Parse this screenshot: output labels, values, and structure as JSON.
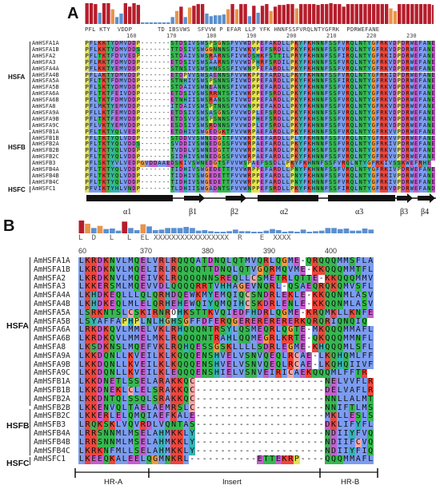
{
  "panel_a": {
    "letter": "A",
    "consensus": "PFL KTY  VDDP       TD IBSVWS  SFVVW P EFAR LLP YFK HNNFSSFVRQLNTYGFRK  PDRWEFANE",
    "ruler": [
      "160",
      "170",
      "180",
      "190",
      "200",
      "210",
      "220",
      "230"
    ],
    "groups": [
      "HSFA",
      "HSFB",
      "HSFC"
    ],
    "names": [
      "AmHSFA1A",
      "AmHSFA1B",
      "AmHSFA2",
      "AmHSFA3",
      "AmHSFA4A",
      "AmHSFA4B",
      "AmHSFA5A",
      "AmHSFA5B",
      "AmHSFA6A",
      "AmHSFA6B",
      "AmHSFA8",
      "AmHSFA9A",
      "AmHSFA9B",
      "AmHSFA9C",
      "AmHSFB1A",
      "AmHSFB1B",
      "AmHSFB2A",
      "AmHSFB2B",
      "AmHSFB2C",
      "AmHSFB3",
      "AmHSFB4A",
      "AmHSFB4B",
      "AmHSFB4C",
      "AmHSFC1"
    ],
    "sequences": [
      "PFLKKTYDMVDDP-------STDSIVSWSPSGNSFVVWDPPEFAKDLLPKYFKHNNFSSFVRQLNTYGFRKVDPDRWEFANE",
      "PFLKKTYDMVDDS-------TTDSIVSWGGNNNSFIVWKVPEFSRDLLPKYFKHNNFSSFVRQLNTYGFRKVDPDRWEFANE",
      "PFLTKTFDVVEDP-------STDAIVSWSRARNSFIVWDSHKFSTTILPRYFKHNNFSSFIRQLNTYGFRKIDPDRWEFANE",
      "PFLRKTFDMVDDP-------ETDSIVSWSAARNSFVVWDPHRFSRDILPKYFKHNNFSSFVRQLNTYGFRKVDPDRWEFANE",
      "PFLKKTYEMVDDP-------STNSIVSWSHNSSSFIVWNPPEFARDLLPKYFKHNNFSSFVRQLNTYGFRKVDPDRWEFANE",
      "PFLAKTYDMVDDP-------ETDPVVSWSAENNSFVVWKPPEFARDLLPKYFKHNNFSSFVRQLNTYGFRKIDPDRWEFANE",
      "PFLTKTFDMVDDP-------STNHIVSWSPSNNSFIVWDPPEFARDLLPKYFKHNNFSSFIRQLNTYGFRKVDPDRWEFANE",
      "PFLSKTYDMVDDP-------STDAIVSWNEANNSFIVWDPPEFARDLLPKYFKHNNFSSFVRQLNTYGFRKVDPDRWEFANE",
      "PFLTKTFEIVDDP-------ETDSIVSWSRRNTSFIVWKPPEFSRDLLPKYFKHNNFSSFVRQLNTYGFRKVDPDRWEFANE",
      "PFLTKTFDMVDDP-------ETNHIISWSRANSSFIVWDPPEFARDLLPKYFKHNNFSSFVRQLNTYGFRKVDPDRWEFANE",
      "PFLMKTYEMVDDP-------ITDAIVSWSPTNNSFVVWNPPEFAKDLLPKYFKHNNFSSFVRQLNTYGFRKVDPDRWEFANE",
      "PFLLKTFEMVDDP-------ETDSIVSWSASGNSFVVWDPLEFSRDLLPKYFKHNNFSSFVRQLNTYGFRKVDPDRWEFANE",
      "PFLTKTFEMVDDP-------ETDSVVSWSPSNNSFVVWDPHEFSRDLLPKYFKHSNFSSFVRQLNTYGFRKVDPDRWEFANE",
      "PFLVKTYEMVDDP-------ESDSIVSWSRDNNSFVVWDPLEFSRDLLPKYFKHNNFSSFVRQLNTYGFRKVDPDRWEFANE",
      "PFLTKTYQLVEDP-------ETDHIVSWGEDGKTFVVWRPAEFARDLLPKYFKHNNFSSFVRQLNTYGFRKVVPDRWEFANE",
      "PFLTKTYQLVDDP-------STDDVVSWNEDGTTFVVWKPAEFARDLLPLYFKHNNFSSFVRQLNTYGFRKVVPDRWEFANE",
      "PFLTKTYQLVDDS-------SVDDIVSWNEDGSSFVVWRPAEFARDLLPKYFKHNNFSSFVRQLNTYGFRKIVPDRWEFANE",
      "PFLTKTYQLVDDP-------TVDDLVSWNEDGTTFVVWRPAEFARDLLPKYFKHSNFSSFVRQLNTYGFRKVVPDRWEFANE",
      "PFLTKTYQLVDDP-------SIDHIVSWNEDGSSFVVWRPAEFARDLLPKYFKHNNFSSFVRQLNTYGFRKVVPDRWEFANE",
      "PFLSKTYVLVEDPGVDDAAEDSKIVSWNEDGTSFVVWSPAEFSSDLLPKYFKHNNFSSFVRQLNTYGFRKIVSSKWEFRHE",
      "PFLTKTYQLVDDP-------TIDHIVSWGEDETTFVVWRPPEFARDLLPNYFKHNNFSSFVRQLNTYGFRKIVPDRWEFANE",
      "PFLTKTYQLVDDP-------TIDHIVSWGEDETTFVVWRPPEFARDLLPNYFKHNNFSSFVRQLNTYGFRKIVPDRWEFANE",
      "PFLTKTYQLVDDP-------TIDHIVSWGEDETTFVVWRPPEFARDLLPNYFKHNNFSSFVRQLNTYGFRKIVPDRWEFANE",
      "PFVIKTYHLVNDP-------TLDHIISWGADNTSFVVWNPPEFSRDLLPKYFKHNNFSSFIRQLNTYGFRKVDPDRWEFAND"
    ],
    "secondary_structure": [
      "α1",
      "β1",
      "β2",
      "α2",
      "α3",
      "β3",
      "β4"
    ]
  },
  "panel_b": {
    "letter": "B",
    "consensus": "L  D   L   L  EL XXXXXXXXXXXXXXXXX  R    E  XXXX",
    "ruler": [
      "60",
      "370",
      "380",
      "390",
      "400"
    ],
    "groups": [
      "HSFA",
      "HSFB",
      "HSFC"
    ],
    "names": [
      "AmHSFA1A",
      "AmHSFA1B",
      "AmHSFA2",
      "AmHSFA3",
      "AmHSFA4A",
      "AmHSFA4B",
      "AmHSFA5A",
      "AmHSFA5B",
      "AmHSFA6A",
      "AmHSFA6B",
      "AmHSFA8",
      "AmHSFA9A",
      "AmHSFA9B",
      "AmHSFA9C",
      "AmHSFB1A",
      "AmHSFB1B",
      "AmHSFB2A",
      "AmHSFB2B",
      "AmHSFB2C",
      "AmHSFB3",
      "AmHSFB4A",
      "AmHSFB4B",
      "AmHSFB4C",
      "AmHSFC1"
    ],
    "sequences": [
      "LKRDKNVLMQELVRLRQQQATDNQLQTMVQRLQGME-QRQQQMMSFLA",
      "LKRDKNVLMQELIRLRQQQQTTDNQLQTVGQRMQVME-KKQQQMMTFLA",
      "LKRDKNVLMQEIVKLRQQQQNNSREQLLCSMETRLQTTE-KKQQQMMVFLA",
      "LKKERSMLMQEVVDLQQQQRRTVHHAGEVNQRL-QSAEQRQKQMVSFL-",
      "LKHDKEQLLLQLQRHDQEWKMYEMQIQCSNDRLEKLE-KKQQNMLASVS",
      "LKHDKEQLMLELQRHEHEWQIYQMQIHCSKDRLENLE-KKQQNMLASVS",
      "LSRKNTSLCSKIRNROHKSTTKVQIEDFHDRLQGME-KRQMKLLKNFE",
      "LSYAFFAPHPLNLHGHSGFFDFERQGERERERERERKQRQRIQNQIQ",
      "LRKDKQVLMMELVKLRHQQQNTRSYLQSMEQRLQGTE-MKQQQMMAFLA",
      "LKRDKQVLMMELMKLRQQQQNTRAHLQQMEGRLKRTE-QKQQQMMNFLA",
      "LKSDKNSLMQEFVKLRQHQESSGSKLLLLSDRLEGME-KHQQQMLSFLV",
      "LKKDQNLLKVEILKLKQQQENSHVELVSNVQEQLRCAE-LKQHQMLFFTR",
      "LKKDQNLLKVEILKLKQQQENSHVELVSNVQEQLRCAE-LKQHQIIVFLTR",
      "LKKDQNLLKVEILKLEQQQENSHIELVSNVEIRICAEKQQQMLFFTR",
      "LKKDNETLSSELARAKKQC---------------------NELVVFLRD",
      "LKKDNEKLCLELSRAKKQC---------------------DELVAFLRD",
      "LKKDNTQLSSQLSRAKKQC---------------------NNLLALMTN",
      "LKKENVQLTAELAEMRSLC---------------------NNIFTLMSN",
      "LKKERLELQMQIAEFKALE---------------------MKLLESLSQ",
      "LRQKSKLVQVRDLVQNTAS---------------------DKLIFYFLD",
      "LRRSNNMLMSELAHMKKLY---------------------NDIIYFVQN",
      "LRRSNNMLMSELAHMKKLY---------------------NDIIFCVQN",
      "LKRKNFMLLSELAHMKKLY---------------------NDIIYFIQN",
      "LKEEQKALEELQGMNKRL-----------ETTEKRP----QQQMMAFLYK"
    ],
    "regions": [
      "HR-A",
      "Insert",
      "HR-B"
    ]
  },
  "colors": {
    "hydrophobic": "#7b9cf0",
    "positive": "#f0453a",
    "negative": "#c65dd0",
    "polar": "#35b84f",
    "glycine": "#f39a3f",
    "proline": "#e3e34f",
    "aromatic": "#33b5b5",
    "cysteine": "#f3a6a6"
  }
}
